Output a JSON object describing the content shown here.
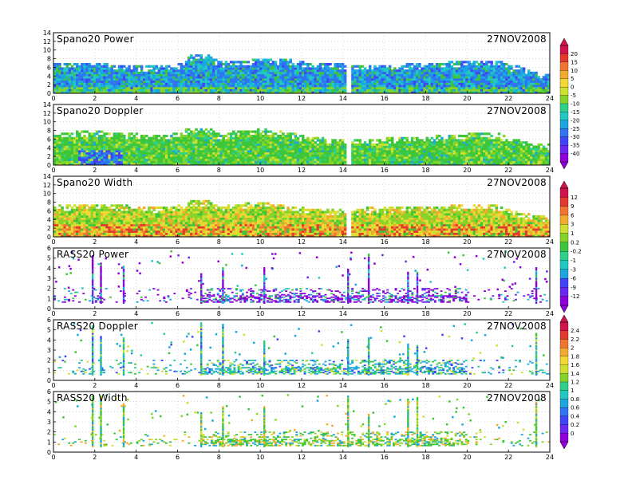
{
  "colorscale": [
    "#8f00d8",
    "#6a28f0",
    "#3f45f5",
    "#2f74f0",
    "#1ca6e0",
    "#22c9c2",
    "#2fd08a",
    "#3ec63a",
    "#86d42a",
    "#cfe030",
    "#f2d735",
    "#f4aa30",
    "#ef7530",
    "#e23a2c",
    "#d1154c"
  ],
  "chart_data": [
    {
      "type": "heatmap",
      "title": "Spano20 Power",
      "date": "27NOV2008",
      "xlim": [
        0,
        24
      ],
      "ylim": [
        0,
        14
      ],
      "xticks": [
        "0",
        "2",
        "4",
        "6",
        "8",
        "10",
        "12",
        "14",
        "16",
        "18",
        "20",
        "22",
        "24"
      ],
      "yticks": [
        "0",
        "2",
        "4",
        "6",
        "8",
        "10",
        "12",
        "14"
      ],
      "colorbar": [
        "20",
        "15",
        "10",
        "5",
        "0",
        "-5",
        "-10",
        "-15",
        "-20",
        "-25",
        "-30",
        "-35",
        "-40"
      ],
      "data_top_profile": {
        "x": [
          0,
          1,
          2,
          3,
          4,
          5,
          6,
          6.5,
          7,
          7.5,
          8,
          8.5,
          9,
          9.5,
          10,
          10.5,
          11,
          11.5,
          12,
          13,
          14,
          14.5,
          15,
          16,
          17,
          18,
          19,
          20,
          20.5,
          21,
          21.5,
          22,
          22.5,
          23,
          23.5,
          24
        ],
        "y": [
          7,
          7,
          6.8,
          6.5,
          6.2,
          6.1,
          6.5,
          8.5,
          9,
          8.5,
          7,
          7.2,
          7.5,
          7.5,
          7.8,
          7.5,
          7.8,
          7.5,
          7,
          6.8,
          6.5,
          6.4,
          6.5,
          6.2,
          6.5,
          6.8,
          7,
          7.2,
          7.5,
          7.4,
          7.5,
          6.2,
          6,
          5,
          4.5,
          4.2
        ]
      }
    },
    {
      "type": "heatmap",
      "title": "Spano20 Doppler",
      "date": "27NOV2008",
      "xlim": [
        0,
        24
      ],
      "ylim": [
        0,
        14
      ],
      "xticks": [
        "0",
        "2",
        "4",
        "6",
        "8",
        "10",
        "12",
        "14",
        "16",
        "18",
        "20",
        "22",
        "24"
      ],
      "yticks": [
        "0",
        "2",
        "4",
        "6",
        "8",
        "10",
        "12",
        "14"
      ],
      "data_top_profile": {
        "x": [
          0,
          1,
          2,
          3,
          4,
          5,
          6,
          6.5,
          7,
          7.5,
          8,
          8.5,
          9,
          9.5,
          10,
          10.5,
          11,
          11.5,
          12,
          13,
          14,
          14.5,
          15,
          16,
          17,
          18,
          19,
          20,
          20.5,
          21,
          21.5,
          22,
          22.5,
          23,
          23.5,
          24
        ],
        "y": [
          7.2,
          7.5,
          7.6,
          7.3,
          7,
          6.5,
          7.5,
          8.3,
          8.5,
          8.4,
          6.8,
          7.5,
          7.8,
          7.8,
          8.2,
          7.8,
          7.5,
          7.2,
          6.5,
          6,
          5.8,
          5.6,
          5.8,
          6,
          6.2,
          6.5,
          6.8,
          7,
          7.2,
          7.2,
          7.1,
          6,
          5.8,
          5,
          4.8,
          4.5
        ]
      }
    },
    {
      "type": "heatmap",
      "title": "Spano20 Width",
      "date": "27NOV2008",
      "xlim": [
        0,
        24
      ],
      "ylim": [
        0,
        14
      ],
      "xticks": [
        "0",
        "2",
        "4",
        "6",
        "8",
        "10",
        "12",
        "14",
        "16",
        "18",
        "20",
        "22",
        "24"
      ],
      "yticks": [
        "0",
        "2",
        "4",
        "6",
        "8",
        "10",
        "12",
        "14"
      ],
      "colorbar": [
        "12",
        "9",
        "6",
        "3",
        "1",
        "0.2",
        "-0.2",
        "-1",
        "-3",
        "-6",
        "-9",
        "-12"
      ],
      "data_top_profile": {
        "x": [
          0,
          1,
          2,
          3,
          4,
          5,
          6,
          6.5,
          7,
          7.5,
          8,
          8.5,
          9,
          9.5,
          10,
          10.5,
          11,
          11.5,
          12,
          13,
          14,
          14.5,
          15,
          16,
          17,
          18,
          19,
          20,
          20.5,
          21,
          21.5,
          22,
          22.5,
          23,
          23.5,
          24
        ],
        "y": [
          7,
          7.2,
          7.5,
          7.2,
          6.8,
          6.5,
          7,
          8,
          8.2,
          8,
          6.5,
          7.2,
          7.5,
          7.8,
          8,
          7.5,
          7.2,
          7,
          6.5,
          6.2,
          6,
          6,
          6.5,
          6.6,
          6.8,
          7,
          7,
          7.2,
          7.3,
          7.2,
          7,
          6,
          5.5,
          5,
          4.8,
          4.2
        ]
      }
    },
    {
      "type": "heatmap",
      "title": "RASS20 Power",
      "date": "27NOV2008",
      "xlim": [
        0,
        24
      ],
      "ylim": [
        0,
        6
      ],
      "xticks": [
        "0",
        "2",
        "4",
        "6",
        "8",
        "10",
        "12",
        "14",
        "16",
        "18",
        "20",
        "22",
        "24"
      ],
      "yticks": [
        "0",
        "1",
        "2",
        "3",
        "4",
        "5",
        "6"
      ],
      "vertical_spikes_x": [
        1.85,
        2.25,
        3.35,
        7.1,
        8.15,
        10.15,
        14.2,
        15.2,
        17.1,
        17.55,
        23.3
      ],
      "band_y": [
        0.6,
        2.0
      ]
    },
    {
      "type": "heatmap",
      "title": "RASS20 Doppler",
      "date": "27NOV2008",
      "xlim": [
        0,
        24
      ],
      "ylim": [
        0,
        6
      ],
      "xticks": [
        "0",
        "2",
        "4",
        "6",
        "8",
        "10",
        "12",
        "14",
        "16",
        "18",
        "20",
        "22",
        "24"
      ],
      "yticks": [
        "0",
        "1",
        "2",
        "3",
        "4",
        "5",
        "6"
      ],
      "colorbar": [
        "2.4",
        "2.2",
        "2",
        "1.8",
        "1.6",
        "1.4",
        "1.2",
        "1",
        "0.8",
        "0.6",
        "0.4",
        "0.2",
        "0"
      ],
      "vertical_spikes_x": [
        1.85,
        2.25,
        3.35,
        7.1,
        8.15,
        10.15,
        14.2,
        15.2,
        17.1,
        17.55,
        23.3
      ],
      "band_y": [
        0.6,
        2.0
      ]
    },
    {
      "type": "heatmap",
      "title": "RASS20 Width",
      "date": "27NOV2008",
      "xlim": [
        0,
        24
      ],
      "ylim": [
        0,
        6
      ],
      "xticks": [
        "0",
        "2",
        "4",
        "6",
        "8",
        "10",
        "12",
        "14",
        "16",
        "18",
        "20",
        "22",
        "24"
      ],
      "yticks": [
        "0",
        "1",
        "2",
        "3",
        "4",
        "5",
        "6"
      ],
      "vertical_spikes_x": [
        1.85,
        2.25,
        3.35,
        7.1,
        8.15,
        10.15,
        14.2,
        15.2,
        17.1,
        17.55,
        23.3
      ],
      "band_y": [
        0.6,
        2.0
      ]
    }
  ]
}
